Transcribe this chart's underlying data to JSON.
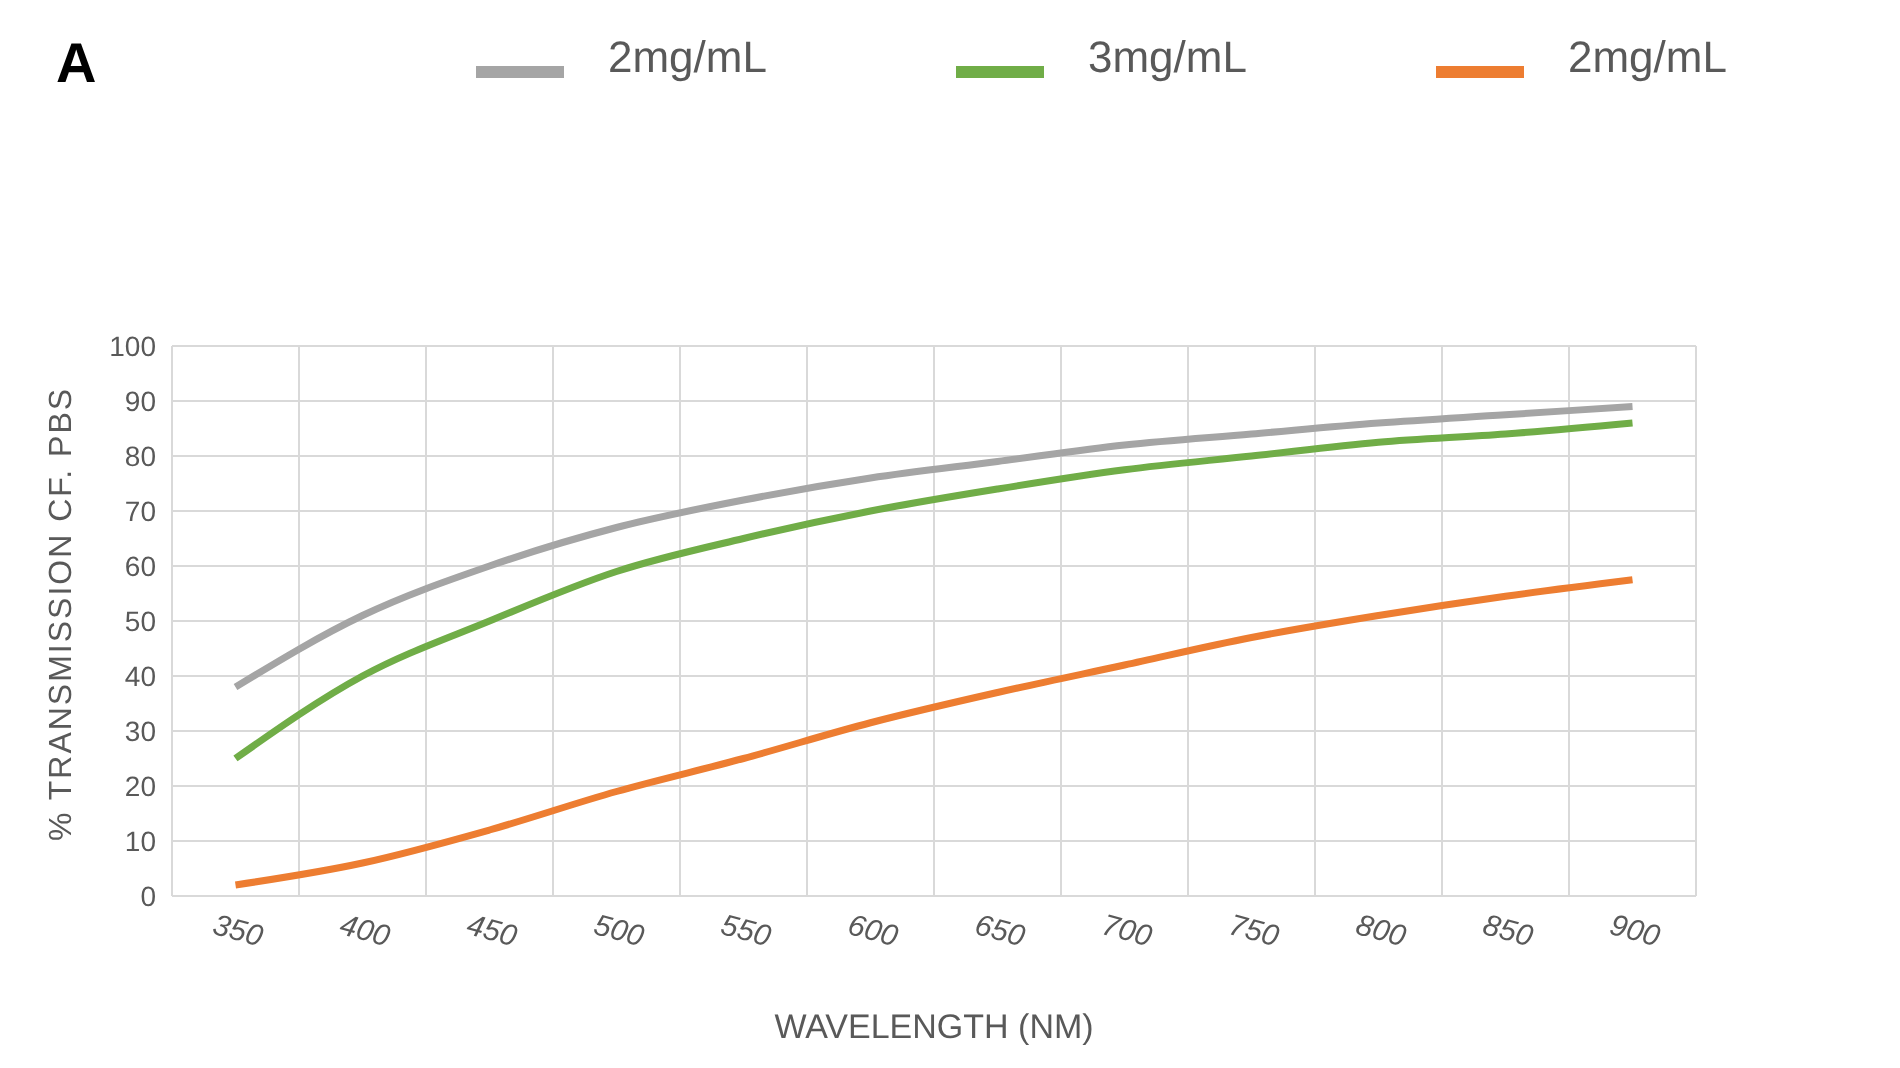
{
  "chart_data": {
    "type": "line",
    "title": "A",
    "xlabel": "WAVELENGTH (NM)",
    "ylabel": "% TRANSMISSION CF. PBS",
    "categories": [
      "350",
      "400",
      "450",
      "500",
      "550",
      "600",
      "650",
      "700",
      "750",
      "800",
      "850",
      "900"
    ],
    "series": [
      {
        "name": "2mg/mL",
        "color": "#a5a5a5",
        "values": [
          38,
          51,
          60,
          67,
          72,
          76,
          79,
          82,
          84,
          86,
          87.5,
          89
        ]
      },
      {
        "name": "3mg/mL",
        "color": "#70ad47",
        "values": [
          25,
          40,
          50,
          59,
          65,
          70,
          74,
          77.5,
          80,
          82.5,
          84,
          86
        ]
      },
      {
        "name": "2mg/mL",
        "color": "#ed7d31",
        "values": [
          2,
          6,
          12,
          19,
          25,
          31.5,
          37,
          42,
          47,
          51,
          54.5,
          57.5
        ]
      }
    ],
    "ylim": [
      0,
      100
    ],
    "yticks": [
      0,
      10,
      20,
      30,
      40,
      50,
      60,
      70,
      80,
      90,
      100
    ],
    "grid": true,
    "legend": "top",
    "marker": "none",
    "line_style": "solid"
  }
}
